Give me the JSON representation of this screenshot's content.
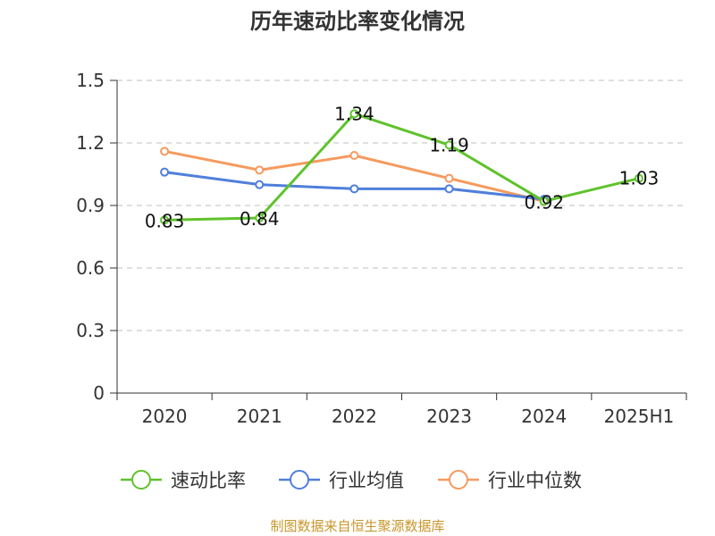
{
  "chart_data": {
    "type": "line",
    "title": "历年速动比率变化情况",
    "categories": [
      "2020",
      "2021",
      "2022",
      "2023",
      "2024",
      "2025H1"
    ],
    "y_ticks": [
      "0",
      "0.3",
      "0.6",
      "0.9",
      "1.2",
      "1.5"
    ],
    "ylim": [
      0,
      1.5
    ],
    "grid": true,
    "legend_position": "bottom",
    "series": [
      {
        "name": "速动比率",
        "color": "#5fc22c",
        "values": [
          0.83,
          0.84,
          1.34,
          1.19,
          0.92,
          1.03
        ],
        "labels": [
          "0.83",
          "0.84",
          "1.34",
          "1.19",
          "0.92",
          "1.03"
        ],
        "show_labels": true,
        "label_position": [
          "below",
          "below",
          "above",
          "above",
          "below",
          "above"
        ]
      },
      {
        "name": "行业均值",
        "color": "#4f7fdb",
        "values": [
          1.06,
          1.0,
          0.98,
          0.98,
          0.93,
          null
        ],
        "show_labels": false
      },
      {
        "name": "行业中位数",
        "color": "#f59a5f",
        "values": [
          1.16,
          1.07,
          1.14,
          1.03,
          0.92,
          null
        ],
        "show_labels": false
      }
    ],
    "source": "制图数据来自恒生聚源数据库"
  }
}
